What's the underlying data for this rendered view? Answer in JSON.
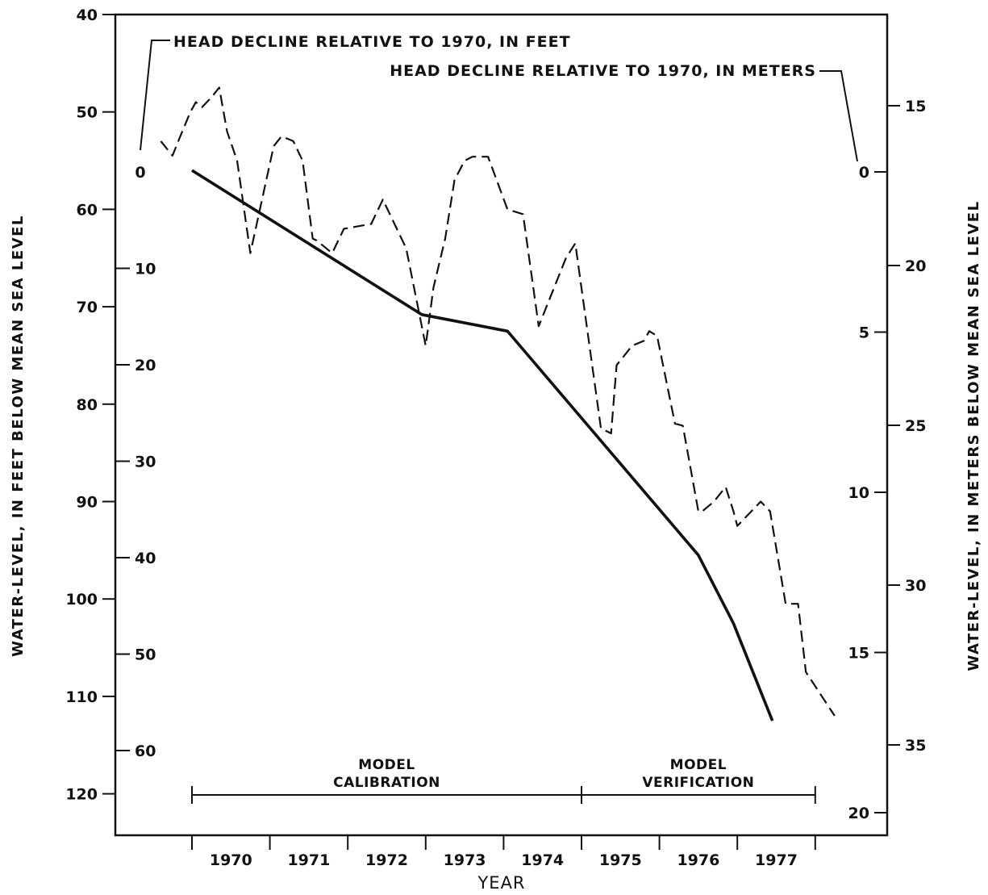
{
  "chart_data": {
    "type": "line",
    "title": "",
    "xlabel": "YEAR",
    "ylabel_left": "WATER-LEVEL, IN FEET BELOW MEAN SEA LEVEL",
    "ylabel_right": "WATER-LEVEL, IN METERS BELOW MEAN SEA LEVEL",
    "head_label_feet": "HEAD DECLINE RELATIVE TO 1970, IN FEET",
    "head_label_meters": "HEAD DECLINE RELATIVE TO 1970, IN METERS",
    "x_range": [
      1969.0,
      1978.0
    ],
    "year_ticks": [
      1970,
      1971,
      1972,
      1973,
      1974,
      1975,
      1976,
      1977
    ],
    "y_left_feet": {
      "range": [
        40,
        124
      ],
      "ticks": [
        40,
        50,
        60,
        70,
        80,
        90,
        100,
        110,
        120
      ],
      "tick_labels": [
        "40",
        "50",
        "60",
        "70",
        "80",
        "90",
        "100",
        "110",
        "120"
      ],
      "inverted": true
    },
    "y_right_meters": {
      "ticks": [
        15,
        20,
        25,
        30,
        35
      ],
      "tick_labels": [
        "15",
        "20",
        "25",
        "30",
        "35"
      ]
    },
    "head_decline_feet_scale": {
      "ticks": [
        0,
        10,
        20,
        30,
        40,
        50,
        60
      ],
      "tick_labels": [
        "0",
        "10",
        "20",
        "30",
        "40",
        "50",
        "60"
      ]
    },
    "head_decline_meters_scale": {
      "ticks": [
        0,
        5,
        10,
        15,
        20
      ],
      "tick_labels": [
        "0",
        "5",
        "10",
        "15",
        "20"
      ]
    },
    "periods": [
      {
        "label_line1": "MODEL",
        "label_line2": "CALIBRATION",
        "start": 1970.0,
        "end": 1975.0
      },
      {
        "label_line1": "MODEL",
        "label_line2": "VERIFICATION",
        "start": 1975.0,
        "end": 1978.0
      }
    ],
    "series": [
      {
        "style": "dashed",
        "x": [
          1969.6,
          1969.75,
          1969.85,
          1969.98,
          1970.05,
          1970.13,
          1970.25,
          1970.35,
          1970.45,
          1970.58,
          1970.75,
          1971.05,
          1971.15,
          1971.3,
          1971.42,
          1971.55,
          1971.6,
          1971.8,
          1971.95,
          1972.3,
          1972.45,
          1972.75,
          1973.0,
          1973.1,
          1973.25,
          1973.37,
          1973.5,
          1973.6,
          1973.7,
          1973.8,
          1974.05,
          1974.25,
          1974.45,
          1974.8,
          1974.92,
          1975.25,
          1975.38,
          1975.45,
          1975.65,
          1975.8,
          1975.87,
          1975.97,
          1976.2,
          1976.3,
          1976.5,
          1976.55,
          1976.7,
          1976.85,
          1976.95,
          1977.0,
          1977.3,
          1977.42,
          1977.62,
          1977.78,
          1977.88,
          1978.25
        ],
        "y": [
          53,
          54.5,
          52.5,
          50,
          49,
          49.5,
          48.5,
          47.5,
          52,
          55,
          64.5,
          53.5,
          52.5,
          53,
          55,
          63,
          63.2,
          64.5,
          62,
          61.5,
          59,
          64,
          74,
          68,
          63,
          57,
          55,
          54.6,
          54.6,
          54.6,
          60,
          60.5,
          72,
          65,
          63.5,
          82.5,
          83,
          76,
          74,
          73.5,
          72.5,
          73,
          82,
          82.2,
          91,
          91,
          90,
          88.5,
          91,
          92.5,
          90,
          91,
          100.5,
          100.5,
          107.5,
          112
        ]
      },
      {
        "style": "solid",
        "x": [
          1970.0,
          1972.95,
          1974.05,
          1976.5,
          1976.95,
          1977.45
        ],
        "y": [
          56,
          70.8,
          72.5,
          95.5,
          102.5,
          112.5
        ]
      }
    ]
  }
}
